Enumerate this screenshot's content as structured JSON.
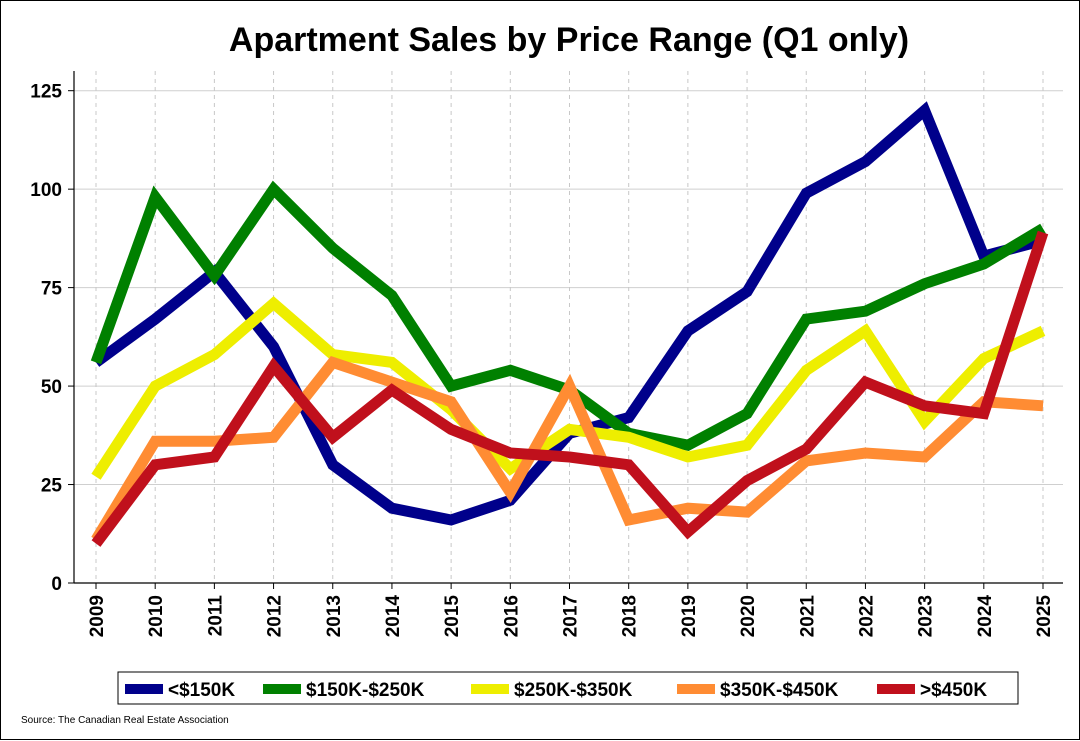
{
  "chart_data": {
    "type": "line",
    "title": "Apartment Sales by Price Range (Q1 only)",
    "xlabel": "",
    "ylabel": "",
    "ylim": [
      0,
      130
    ],
    "yticks": [
      0,
      25,
      50,
      75,
      100,
      125
    ],
    "categories": [
      "2009",
      "2010",
      "2011",
      "2012",
      "2013",
      "2014",
      "2015",
      "2016",
      "2017",
      "2018",
      "2019",
      "2020",
      "2021",
      "2022",
      "2023",
      "2024",
      "2025"
    ],
    "grid": true,
    "legend_position": "bottom",
    "series": [
      {
        "name": "<$150K",
        "color": "#00008b",
        "values": [
          56,
          67,
          79,
          60,
          30,
          19,
          16,
          21,
          38,
          42,
          64,
          74,
          99,
          107,
          120,
          83,
          87
        ]
      },
      {
        "name": "$150K-$250K",
        "color": "#008000",
        "values": [
          56,
          98,
          78,
          100,
          85,
          73,
          50,
          54,
          49,
          38,
          35,
          43,
          67,
          69,
          76,
          81,
          90
        ]
      },
      {
        "name": "$250K-$350K",
        "color": "#eeee00",
        "values": [
          27,
          50,
          58,
          71,
          58,
          56,
          44,
          29,
          39,
          37,
          32,
          35,
          54,
          64,
          41,
          57,
          64
        ]
      },
      {
        "name": "$350K-$450K",
        "color": "#ff8c33",
        "values": [
          11,
          36,
          36,
          37,
          56,
          51,
          46,
          23,
          50,
          16,
          19,
          18,
          31,
          33,
          32,
          46,
          45
        ]
      },
      {
        "name": ">$450K",
        "color": "#c0101c",
        "values": [
          10,
          30,
          32,
          55,
          37,
          49,
          39,
          33,
          32,
          30,
          13,
          26,
          34,
          51,
          45,
          43,
          89
        ]
      }
    ],
    "source": "Source: The Canadian Real Estate Association"
  }
}
